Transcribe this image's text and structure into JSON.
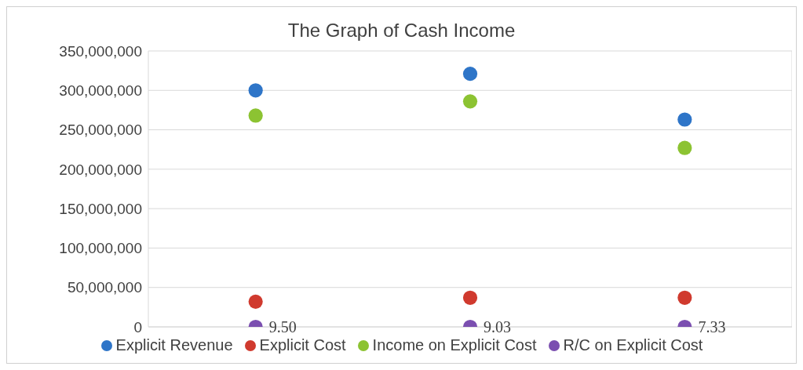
{
  "chart_data": {
    "type": "scatter",
    "title": "The Graph of Cash Income",
    "categories": [
      null,
      null,
      null
    ],
    "series": [
      {
        "name": "Explicit Revenue",
        "color": "#2e75c8",
        "values": [
          300000000,
          321000000,
          263000000
        ]
      },
      {
        "name": "Explicit Cost",
        "color": "#d03a2e",
        "values": [
          32000000,
          37000000,
          37000000
        ]
      },
      {
        "name": "Income on Explicit Cost",
        "color": "#8cc332",
        "values": [
          268000000,
          286000000,
          227000000
        ]
      },
      {
        "name": "R/C on Explicit Cost",
        "color": "#7b4fb0",
        "values": [
          9.5,
          9.03,
          7.33
        ],
        "value_labels": [
          "9.50",
          "9.03",
          "7.33"
        ]
      }
    ],
    "ylim": [
      0,
      350000000
    ],
    "yticks": [
      0,
      {
        "value": 50000000,
        "label": "50,000,000"
      },
      {
        "value": 100000000,
        "label": "100,000,000"
      },
      {
        "value": 150000000,
        "label": "150,000,000"
      },
      {
        "value": 200000000,
        "label": "200,000,000"
      },
      {
        "value": 250000000,
        "label": "250,000,000"
      },
      {
        "value": 300000000,
        "label": "300,000,000"
      },
      {
        "value": 350000000,
        "label": "350,000,000"
      }
    ],
    "grid": true,
    "legend": "bottom",
    "marker": "circle",
    "tick_labels": "y"
  }
}
